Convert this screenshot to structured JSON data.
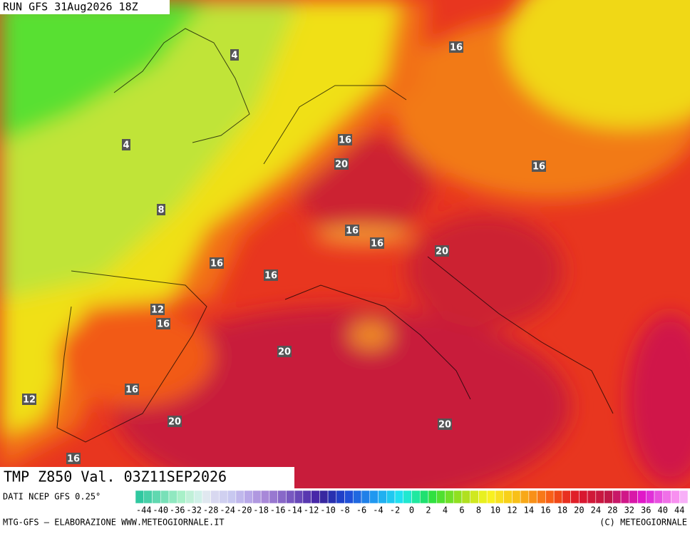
{
  "header": {
    "run": "RUN GFS 31Aug2026 18Z"
  },
  "map": {
    "title": "TMP Z850 Val. 03Z11SEP2026",
    "contour_labels": [
      4,
      16,
      16,
      4,
      20,
      16,
      8,
      16,
      16,
      20,
      16,
      16,
      12,
      16,
      20,
      16,
      12,
      20,
      20,
      16
    ]
  },
  "legend": {
    "source": "DATI NCEP GFS 0.25°",
    "labels": [
      -44,
      -40,
      -36,
      -32,
      -28,
      -24,
      -20,
      -18,
      -16,
      -14,
      -12,
      -10,
      -8,
      -6,
      -4,
      -2,
      0,
      2,
      4,
      6,
      8,
      10,
      12,
      14,
      16,
      18,
      20,
      24,
      28,
      32,
      36,
      40,
      44
    ],
    "colors": [
      "#30c8a0",
      "#48d0a8",
      "#60d8b0",
      "#78e0b8",
      "#90e8c0",
      "#a8f0c8",
      "#c0f0d8",
      "#d0f0e8",
      "#e0e8f0",
      "#d8d8f0",
      "#d0d0f0",
      "#c8c8f0",
      "#c0b8ec",
      "#b8a8e8",
      "#b098e0",
      "#a888d8",
      "#9878d0",
      "#8868c8",
      "#7858c0",
      "#6848b8",
      "#5838b0",
      "#4828a8",
      "#3828a0",
      "#2830b0",
      "#2040c8",
      "#2050d8",
      "#2068e0",
      "#2080e8",
      "#2098f0",
      "#20b0f0",
      "#20c8f0",
      "#20e0f0",
      "#20e8d0",
      "#20e8a0",
      "#20e070",
      "#30e040",
      "#50e030",
      "#70e028",
      "#90e020",
      "#b0e020",
      "#d0e820",
      "#e8f020",
      "#f8f020",
      "#f8e020",
      "#f8d018",
      "#f8c018",
      "#f8a818",
      "#f89018",
      "#f87818",
      "#f86018",
      "#f04818",
      "#e83020",
      "#e02028",
      "#d81830",
      "#d01838",
      "#c81840",
      "#c01848",
      "#c81868",
      "#d01888",
      "#d818a8",
      "#e018c8",
      "#e030d8",
      "#e850e0",
      "#f070e8",
      "#f890f0",
      "#f8b0f8"
    ],
    "credit": "MTG-GFS — ELABORAZIONE WWW.METEOGIORNALE.IT",
    "copyright": "(C) METEOGIORNALE"
  }
}
